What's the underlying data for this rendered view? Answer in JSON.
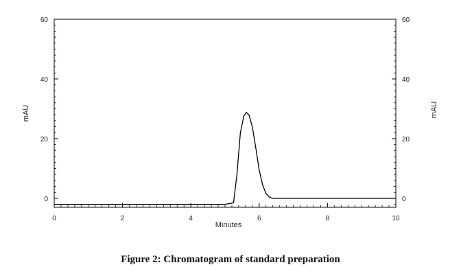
{
  "chart_data": {
    "type": "line",
    "xlabel": "Minutes",
    "ylabel": "mAU",
    "y2label": "mAU",
    "xlim": [
      0,
      10
    ],
    "ylim": [
      -3,
      60
    ],
    "x_ticks": [
      0,
      2,
      4,
      6,
      8,
      10
    ],
    "y_ticks": [
      0,
      20,
      40,
      60
    ],
    "grid": false,
    "series": [
      {
        "x": [
          0,
          1,
          2,
          3,
          4,
          5,
          5.25,
          5.35,
          5.45,
          5.55,
          5.62,
          5.7,
          5.8,
          5.9,
          6.0,
          6.1,
          6.2,
          6.3,
          6.4,
          6.5,
          7,
          8,
          9,
          10
        ],
        "y": [
          -2,
          -2,
          -2,
          -2,
          -2,
          -2,
          -1.5,
          8,
          22,
          27.5,
          28.8,
          28,
          24,
          17,
          9.5,
          4.5,
          1.6,
          0.4,
          0,
          0,
          0,
          0,
          0,
          0
        ]
      }
    ]
  },
  "caption": "Figure 2: Chromatogram of standard preparation"
}
